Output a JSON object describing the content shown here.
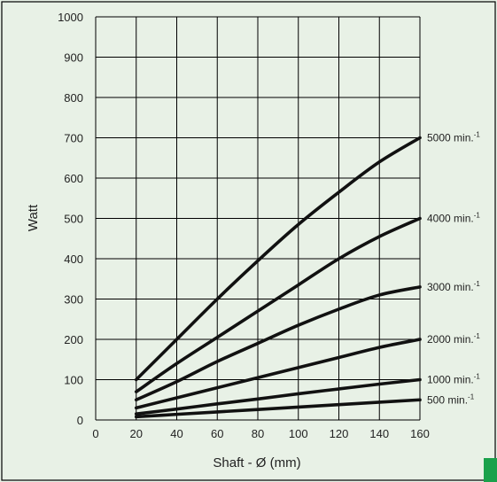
{
  "chart_data": {
    "type": "line",
    "xlabel": "Shaft - Ø (mm)",
    "ylabel": "Watt",
    "xlim": [
      0,
      160
    ],
    "ylim": [
      0,
      1000
    ],
    "x_ticks": [
      0,
      20,
      40,
      60,
      80,
      100,
      120,
      140,
      160
    ],
    "y_ticks": [
      0,
      100,
      200,
      300,
      400,
      500,
      600,
      700,
      800,
      900,
      1000
    ],
    "grid": true,
    "legend": "inline-right",
    "line_color": "#111111",
    "series": [
      {
        "name": "5000 min.",
        "sup": "-1",
        "x": [
          20,
          40,
          60,
          80,
          100,
          120,
          140,
          160
        ],
        "y": [
          100,
          200,
          300,
          395,
          485,
          565,
          640,
          700
        ]
      },
      {
        "name": "4000 min.",
        "sup": "-1",
        "x": [
          20,
          40,
          60,
          80,
          100,
          120,
          140,
          160
        ],
        "y": [
          70,
          140,
          205,
          270,
          335,
          400,
          455,
          500
        ]
      },
      {
        "name": "3000 min.",
        "sup": "-1",
        "x": [
          20,
          40,
          60,
          80,
          100,
          120,
          140,
          160
        ],
        "y": [
          50,
          95,
          145,
          190,
          235,
          275,
          310,
          330
        ]
      },
      {
        "name": "2000 min.",
        "sup": "-1",
        "x": [
          20,
          40,
          60,
          80,
          100,
          120,
          140,
          160
        ],
        "y": [
          30,
          55,
          80,
          105,
          130,
          155,
          180,
          200
        ]
      },
      {
        "name": "1000 min.",
        "sup": "-1",
        "x": [
          20,
          40,
          60,
          80,
          100,
          120,
          140,
          160
        ],
        "y": [
          15,
          27,
          40,
          52,
          65,
          77,
          89,
          100
        ]
      },
      {
        "name": "500 min.",
        "sup": "-1",
        "x": [
          20,
          40,
          60,
          80,
          100,
          120,
          140,
          160
        ],
        "y": [
          8,
          14,
          20,
          26,
          32,
          38,
          44,
          50
        ]
      }
    ]
  },
  "colors": {
    "background": "#e8f1e6",
    "accent": "#1aa14b"
  }
}
